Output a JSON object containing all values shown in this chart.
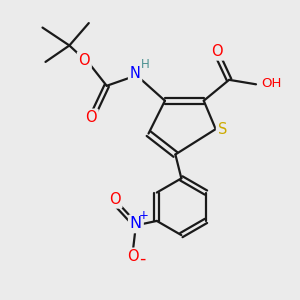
{
  "bg_color": "#ebebeb",
  "bond_color": "#1a1a1a",
  "bond_width": 1.6,
  "atom_colors": {
    "C": "#1a1a1a",
    "H": "#4a9090",
    "N": "#0000ff",
    "O": "#ff0000",
    "S": "#ccaa00"
  },
  "font_size": 9.5,
  "fig_size": [
    3.0,
    3.0
  ],
  "dpi": 100
}
